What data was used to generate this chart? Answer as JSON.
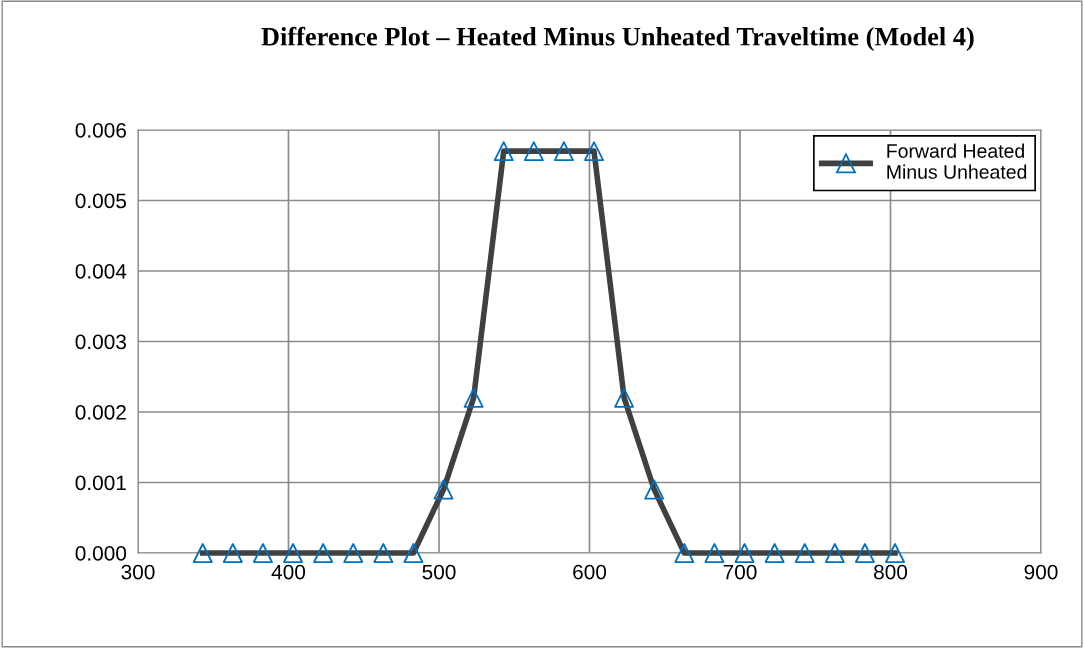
{
  "chart_data": {
    "type": "line",
    "title": "Difference Plot – Heated Minus Unheated Traveltime (Model 4)",
    "x": [
      343,
      363,
      383,
      403,
      423,
      443,
      463,
      483,
      503,
      523,
      543,
      563,
      583,
      603,
      623,
      643,
      663,
      683,
      703,
      723,
      743,
      763,
      783,
      803
    ],
    "series": [
      {
        "name": "Forward Heated\nMinus Unheated",
        "color": "#404040",
        "colors": [
          "#0070c0",
          "#0070c0",
          "#0070c0",
          "#0070c0",
          "#0070c0",
          "#0070c0",
          "#0070c0",
          "#0070c0",
          "#0070c0",
          "#0070c0",
          "#0070c0",
          "#0070c0",
          "#0070c0",
          "#0070c0",
          "#0070c0",
          "#0070c0",
          "#0070c0",
          "#0070c0",
          "#0070c0",
          "#0070c0",
          "#0070c0",
          "#0070c0",
          "#0070c0",
          "#0070c0"
        ],
        "values": [
          0,
          0,
          0,
          0,
          0,
          0,
          0,
          0,
          0.0009,
          0.0022,
          0.0057,
          0.0057,
          0.0057,
          0.0057,
          0.0022,
          0.0009,
          0,
          0,
          0,
          0,
          0,
          0,
          0,
          0
        ]
      }
    ],
    "xlim": [
      300,
      900
    ],
    "xticks": [
      300,
      400,
      500,
      600,
      700,
      800,
      900
    ],
    "ylim": [
      0,
      0.006
    ],
    "yticks": [
      {
        "value": 0,
        "label": "0.000"
      },
      {
        "value": 0.001,
        "label": "0.001"
      },
      {
        "value": 0.002,
        "label": "0.002"
      },
      {
        "value": 0.003,
        "label": "0.003"
      },
      {
        "value": 0.004,
        "label": "0.004"
      },
      {
        "value": 0.005,
        "label": "0.005"
      },
      {
        "value": 0.006,
        "label": "0.006"
      }
    ],
    "grid": true,
    "legend": "top right",
    "marker": "triangle",
    "line_style": "solid"
  }
}
